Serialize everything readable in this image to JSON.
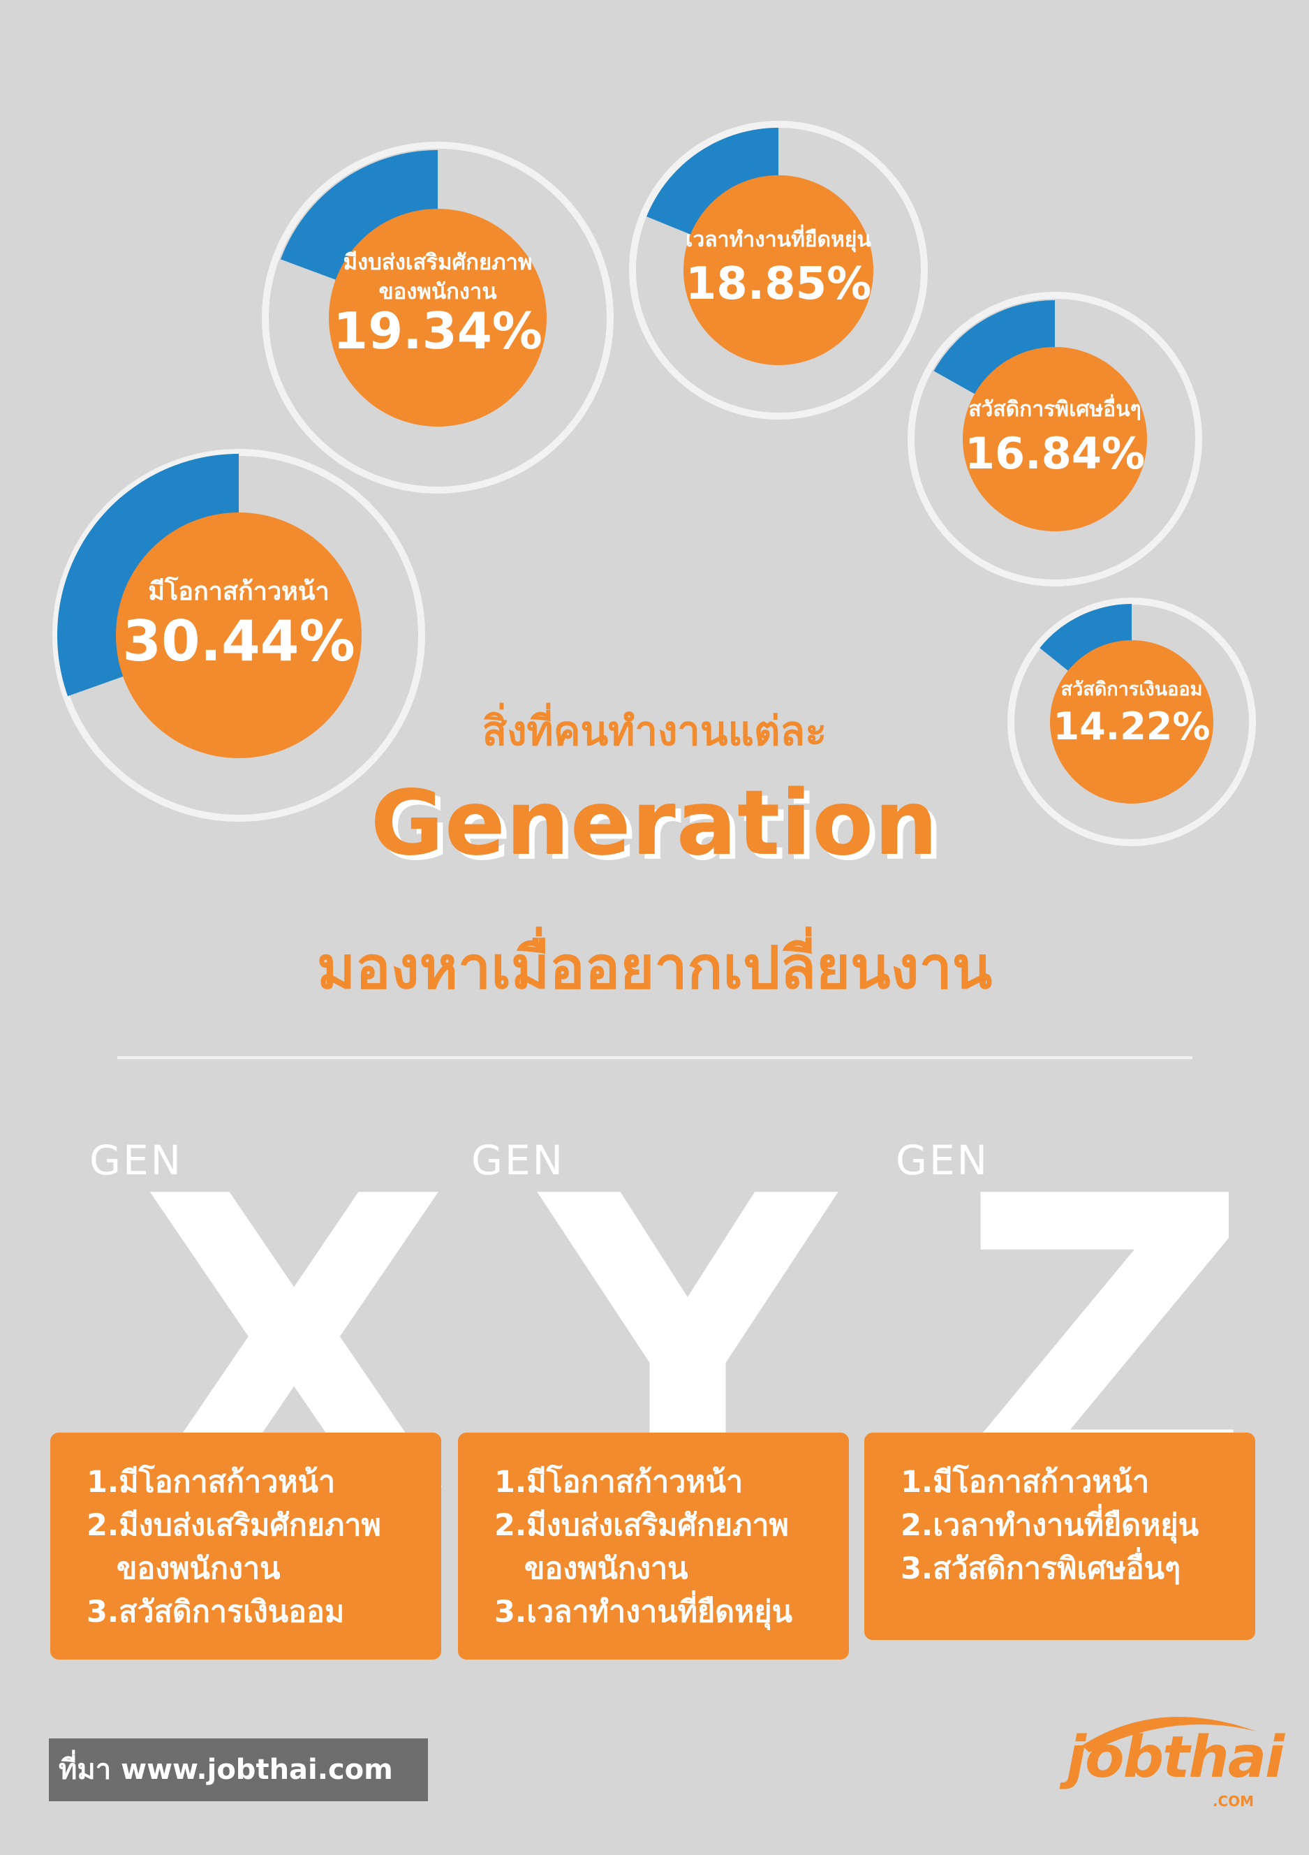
{
  "donuts": [
    {
      "id": "growth",
      "value": 30.44,
      "label": [
        "มีโอกาสก้าวหน้า"
      ],
      "value_text": "30.44%"
    },
    {
      "id": "development-budget",
      "value": 19.34,
      "label": [
        "มีงบส่งเสริมศักยภาพ",
        "ของพนักงาน"
      ],
      "value_text": "19.34%"
    },
    {
      "id": "flexible-hours",
      "value": 18.85,
      "label": [
        "เวลาทำงานที่ยืดหยุ่น"
      ],
      "value_text": "18.85%"
    },
    {
      "id": "special-benefits",
      "value": 16.84,
      "label": [
        "สวัสดิการพิเศษอื่นๆ"
      ],
      "value_text": "16.84%"
    },
    {
      "id": "savings-fund",
      "value": 14.22,
      "label": [
        "สวัสดิการเงินออม"
      ],
      "value_text": "14.22%"
    }
  ],
  "title": {
    "line1": "สิ่งที่คนทำงานแต่ละ",
    "line2": "Generation",
    "line3": "มองหาเมื่ออยากเปลี่ยนงาน"
  },
  "generations": [
    {
      "prefix": "GEN",
      "letter": "X",
      "items": [
        "1.มีโอกาสก้าวหน้า",
        "2.มีงบส่งเสริมศักยภาพ",
        "ของพนักงาน",
        "3.สวัสดิการเงินออม"
      ]
    },
    {
      "prefix": "GEN",
      "letter": "Y",
      "items": [
        "1.มีโอกาสก้าวหน้า",
        "2.มีงบส่งเสริมศักยภาพ",
        "ของพนักงาน",
        "3.เวลาทำงานที่ยืดหยุ่น"
      ]
    },
    {
      "prefix": "GEN",
      "letter": "Z",
      "items": [
        "1.มีโอกาสก้าวหน้า",
        "2.เวลาทำงานที่ยืดหยุ่น",
        "3.สวัสดิการพิเศษอื่นๆ"
      ]
    }
  ],
  "source": "ที่มา www.jobthai.com",
  "logo": {
    "name": "jobthai",
    "suffix": ".COM"
  },
  "colors": {
    "background": "#d6d6d6",
    "orange": "#f28a2e",
    "blue": "#2184c7",
    "ring": "#f2f2f2"
  }
}
